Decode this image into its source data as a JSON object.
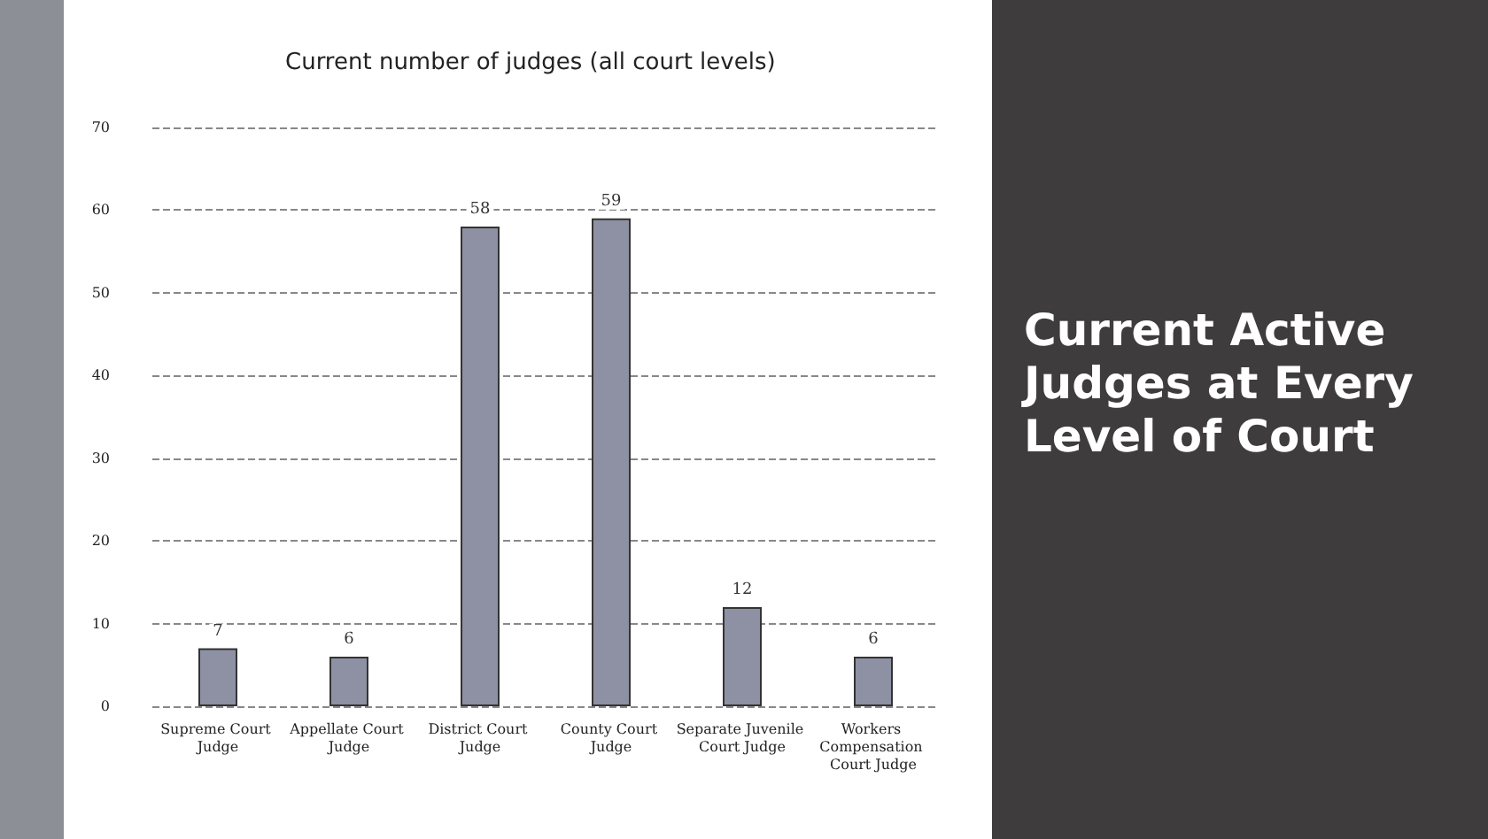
{
  "chart_data": {
    "type": "bar",
    "title": "Current number of judges (all court levels)",
    "categories": [
      "Supreme Court Judge",
      "Appellate Court Judge",
      "District Court Judge",
      "County Court Judge",
      "Separate Juvenile Court Judge",
      "Workers Compensation Court Judge"
    ],
    "values": [
      7,
      6,
      58,
      59,
      12,
      6
    ],
    "color": "#8e91a3",
    "ylim": [
      0,
      70
    ],
    "yticks": [
      0,
      10,
      20,
      30,
      40,
      50,
      60,
      70
    ],
    "grid": "y",
    "data_labels": true,
    "annotations": [
      "Current Active Judges at Every Level of Court"
    ]
  }
}
